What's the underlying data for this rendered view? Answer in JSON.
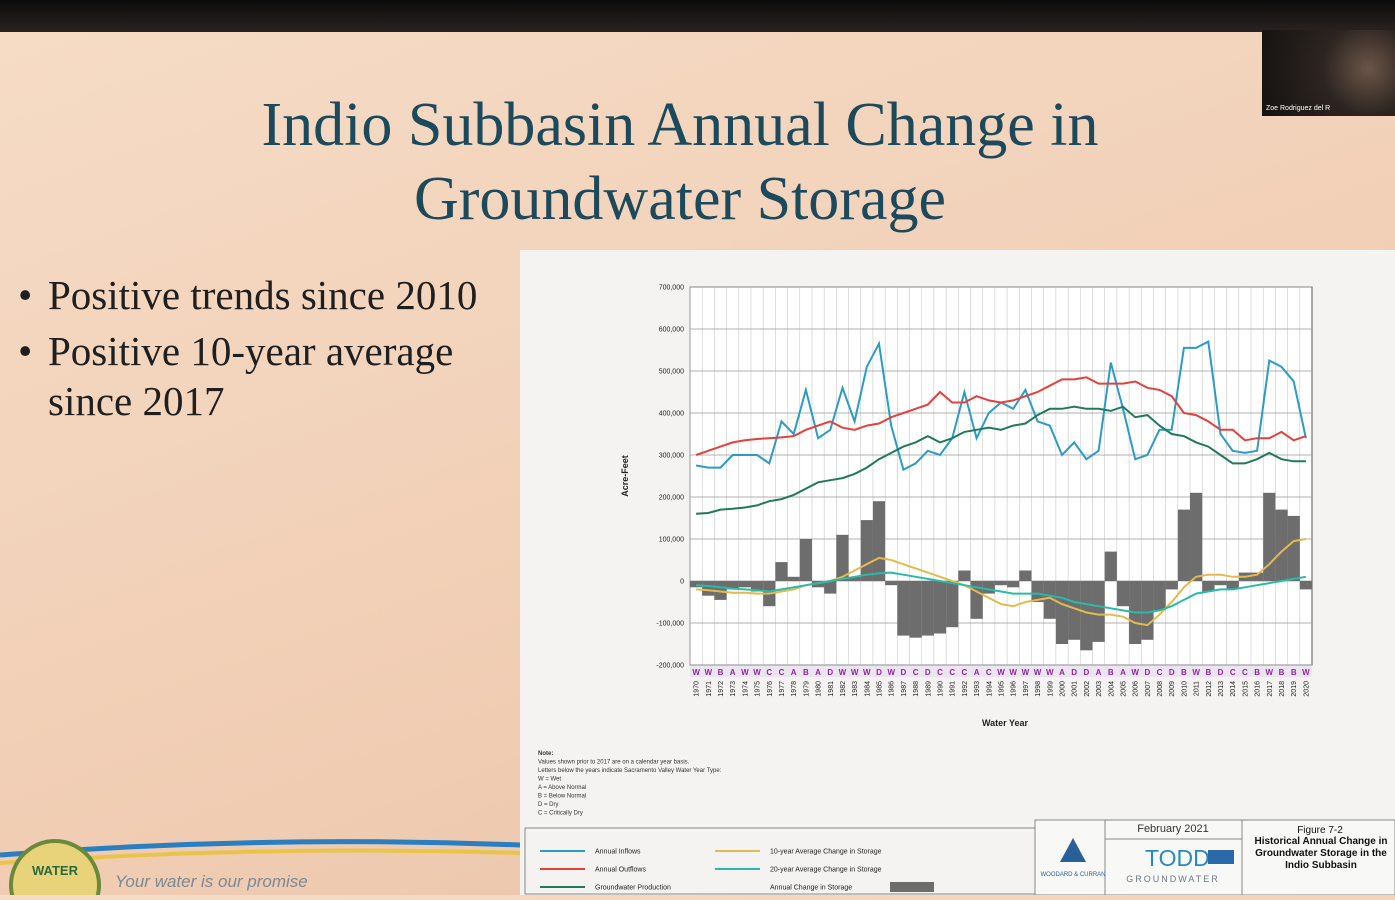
{
  "slide": {
    "title": "Indio Subbasin Annual Change in Groundwater Storage",
    "bullets": [
      "Positive trends since 2010",
      "Positive 10-year average since 2017"
    ],
    "logo_text": "WATER",
    "footer": "Your water is our promise"
  },
  "webcam": {
    "name": "Zoe Rodriguez del R"
  },
  "chart_data": {
    "type": "line",
    "y_label": "Acre-Feet",
    "x_label": "Water Year",
    "categories": [
      "1970",
      "1971",
      "1972",
      "1973",
      "1974",
      "1975",
      "1976",
      "1977",
      "1978",
      "1979",
      "1980",
      "1981",
      "1982",
      "1983",
      "1984",
      "1985",
      "1986",
      "1987",
      "1988",
      "1989",
      "1990",
      "1991",
      "1992",
      "1993",
      "1994",
      "1995",
      "1996",
      "1997",
      "1998",
      "1999",
      "2000",
      "2001",
      "2002",
      "2003",
      "2004",
      "2005",
      "2006",
      "2007",
      "2008",
      "2009",
      "2010",
      "2011",
      "2012",
      "2013",
      "2014",
      "2015",
      "2016",
      "2017",
      "2018",
      "2019",
      "2020"
    ],
    "water_year_types": [
      "W",
      "W",
      "B",
      "A",
      "W",
      "W",
      "C",
      "C",
      "A",
      "B",
      "A",
      "D",
      "W",
      "W",
      "W",
      "D",
      "W",
      "D",
      "C",
      "D",
      "C",
      "C",
      "C",
      "A",
      "C",
      "W",
      "W",
      "W",
      "W",
      "W",
      "A",
      "D",
      "D",
      "A",
      "B",
      "A",
      "W",
      "D",
      "C",
      "D",
      "B",
      "W",
      "B",
      "D",
      "C",
      "C",
      "B",
      "W",
      "B",
      "B",
      "W"
    ],
    "ylim": [
      -200000,
      700000
    ],
    "yticks": [
      {
        "value": -200000,
        "label": "-200,000"
      },
      {
        "value": -100000,
        "label": "-100,000"
      },
      0,
      {
        "value": 100000,
        "label": "100,000"
      },
      {
        "value": 200000,
        "label": "200,000"
      },
      {
        "value": 300000,
        "label": "300,000"
      },
      {
        "value": 400000,
        "label": "400,000"
      },
      {
        "value": 500000,
        "label": "500,000"
      },
      {
        "value": 600000,
        "label": "600,000"
      },
      {
        "value": 700000,
        "label": "700,000"
      }
    ],
    "grid": true,
    "series": [
      {
        "name": "Annual Inflows",
        "type": "line",
        "color": "#2a9cc8",
        "values": [
          275000,
          270000,
          270000,
          300000,
          300000,
          300000,
          280000,
          380000,
          350000,
          455000,
          340000,
          360000,
          460000,
          380000,
          510000,
          565000,
          370000,
          265000,
          280000,
          310000,
          300000,
          340000,
          450000,
          340000,
          400000,
          425000,
          410000,
          455000,
          380000,
          370000,
          300000,
          330000,
          290000,
          310000,
          520000,
          410000,
          290000,
          300000,
          360000,
          360000,
          555000,
          555000,
          570000,
          350000,
          310000,
          305000,
          310000,
          525000,
          510000,
          475000,
          340000
        ]
      },
      {
        "name": "Annual Outflows",
        "type": "line",
        "color": "#e4413c",
        "values": [
          300000,
          310000,
          320000,
          330000,
          335000,
          338000,
          340000,
          342000,
          345000,
          360000,
          370000,
          380000,
          365000,
          360000,
          370000,
          375000,
          390000,
          400000,
          410000,
          420000,
          450000,
          425000,
          425000,
          440000,
          430000,
          425000,
          430000,
          440000,
          450000,
          465000,
          480000,
          480000,
          485000,
          470000,
          470000,
          470000,
          475000,
          460000,
          455000,
          440000,
          400000,
          395000,
          380000,
          360000,
          360000,
          335000,
          340000,
          340000,
          355000,
          335000,
          345000
        ]
      },
      {
        "name": "Groundwater Production",
        "type": "line",
        "color": "#1f7a5a",
        "values": [
          160000,
          162000,
          170000,
          172000,
          175000,
          180000,
          190000,
          195000,
          205000,
          220000,
          235000,
          240000,
          245000,
          255000,
          270000,
          290000,
          305000,
          320000,
          330000,
          345000,
          330000,
          340000,
          355000,
          360000,
          365000,
          360000,
          370000,
          375000,
          395000,
          410000,
          410000,
          415000,
          410000,
          410000,
          405000,
          415000,
          390000,
          395000,
          370000,
          350000,
          345000,
          330000,
          320000,
          300000,
          280000,
          280000,
          290000,
          305000,
          290000,
          285000,
          285000
        ]
      },
      {
        "name": "10-year Average Change in Storage",
        "type": "line",
        "color": "#e6b84e",
        "values": [
          -20000,
          -22000,
          -25000,
          -28000,
          -28000,
          -30000,
          -30000,
          -25000,
          -20000,
          -10000,
          -5000,
          0,
          10000,
          25000,
          40000,
          55000,
          50000,
          40000,
          30000,
          20000,
          10000,
          0,
          -10000,
          -25000,
          -40000,
          -55000,
          -60000,
          -50000,
          -45000,
          -40000,
          -55000,
          -65000,
          -75000,
          -80000,
          -80000,
          -85000,
          -100000,
          -105000,
          -80000,
          -50000,
          -15000,
          10000,
          15000,
          15000,
          10000,
          10000,
          15000,
          40000,
          70000,
          95000,
          100000
        ]
      },
      {
        "name": "20-year Average Change in Storage",
        "type": "line",
        "color": "#27bba8",
        "values": [
          -10000,
          -12000,
          -15000,
          -18000,
          -20000,
          -22000,
          -25000,
          -20000,
          -15000,
          -10000,
          -5000,
          0,
          5000,
          10000,
          15000,
          18000,
          20000,
          15000,
          10000,
          5000,
          0,
          -5000,
          -10000,
          -15000,
          -20000,
          -25000,
          -30000,
          -30000,
          -30000,
          -35000,
          -40000,
          -50000,
          -55000,
          -60000,
          -65000,
          -70000,
          -75000,
          -75000,
          -70000,
          -60000,
          -45000,
          -30000,
          -25000,
          -20000,
          -20000,
          -15000,
          -10000,
          -5000,
          0,
          5000,
          10000
        ]
      },
      {
        "name": "Annual Change in Storage",
        "type": "bar",
        "color": "#6d6d6d",
        "values": [
          -15000,
          -35000,
          -45000,
          -20000,
          -15000,
          -25000,
          -60000,
          45000,
          10000,
          100000,
          -15000,
          -30000,
          110000,
          10000,
          145000,
          190000,
          -10000,
          -130000,
          -135000,
          -130000,
          -125000,
          -110000,
          25000,
          -90000,
          -30000,
          -10000,
          -15000,
          25000,
          -50000,
          -90000,
          -150000,
          -140000,
          -165000,
          -145000,
          70000,
          -60000,
          -150000,
          -140000,
          -70000,
          -20000,
          170000,
          210000,
          -25000,
          -10000,
          -20000,
          20000,
          20000,
          210000,
          170000,
          155000,
          -20000
        ]
      }
    ]
  },
  "notes": [
    "Note:",
    "Values shown prior to 2017 are on a calendar year basis.",
    "Letters below the years indicate Sacramento Valley Water Year Type:",
    "W = Wet",
    "A = Above Normal",
    "B = Below Normal",
    "D = Dry",
    "C = Critically Dry"
  ],
  "figure_box": {
    "date": "February 2021",
    "firm": "WOODARD & CURRAN",
    "logo": "TODD",
    "logo_sub": "GROUNDWATER",
    "figure": "Figure 7-2",
    "caption": "Historical Annual Change in Groundwater Storage in the Indio Subbasin"
  }
}
